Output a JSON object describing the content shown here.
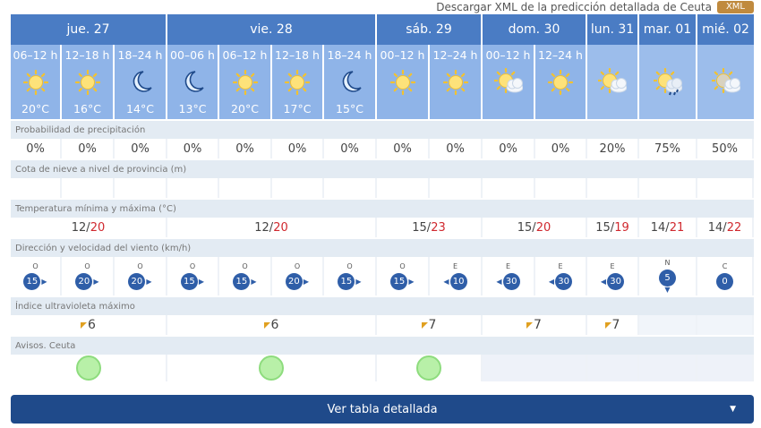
{
  "download": {
    "text": "Descargar XML de la predicción detallada de Ceuta",
    "badge": "XML"
  },
  "days": [
    {
      "label": "jue. 27",
      "temp_min": "12",
      "temp_max": "20",
      "uv": "6",
      "aviso": "green"
    },
    {
      "label": "vie. 28",
      "temp_min": "12",
      "temp_max": "20",
      "uv": "6",
      "aviso": "green"
    },
    {
      "label": "sáb. 29",
      "temp_min": "15",
      "temp_max": "23",
      "uv": "7",
      "aviso": "green"
    },
    {
      "label": "dom. 30",
      "temp_min": "15",
      "temp_max": "20",
      "uv": "7",
      "aviso": ""
    },
    {
      "label": "lun. 31",
      "temp_min": "15",
      "temp_max": "19",
      "uv": "7",
      "aviso": ""
    },
    {
      "label": "mar. 01",
      "temp_min": "14",
      "temp_max": "21",
      "uv": "",
      "aviso": ""
    },
    {
      "label": "mié. 02",
      "temp_min": "14",
      "temp_max": "22",
      "uv": "",
      "aviso": ""
    }
  ],
  "periods": [
    {
      "label": "06–12 h",
      "icon": "sun",
      "temp": "20°C",
      "precip": "0%",
      "wind_dir": "O",
      "wind_speed": "15"
    },
    {
      "label": "12–18 h",
      "icon": "sun",
      "temp": "16°C",
      "precip": "0%",
      "wind_dir": "O",
      "wind_speed": "20"
    },
    {
      "label": "18–24 h",
      "icon": "moon",
      "temp": "14°C",
      "precip": "0%",
      "wind_dir": "O",
      "wind_speed": "20"
    },
    {
      "label": "00–06 h",
      "icon": "moon",
      "temp": "13°C",
      "precip": "0%",
      "wind_dir": "O",
      "wind_speed": "15"
    },
    {
      "label": "06–12 h",
      "icon": "sun",
      "temp": "20°C",
      "precip": "0%",
      "wind_dir": "O",
      "wind_speed": "15"
    },
    {
      "label": "12–18 h",
      "icon": "sun",
      "temp": "17°C",
      "precip": "0%",
      "wind_dir": "O",
      "wind_speed": "20"
    },
    {
      "label": "18–24 h",
      "icon": "moon",
      "temp": "15°C",
      "precip": "0%",
      "wind_dir": "O",
      "wind_speed": "15"
    },
    {
      "label": "00–12 h",
      "icon": "sun",
      "temp": "",
      "precip": "0%",
      "wind_dir": "O",
      "wind_speed": "15"
    },
    {
      "label": "12–24 h",
      "icon": "sun",
      "temp": "",
      "precip": "0%",
      "wind_dir": "E",
      "wind_speed": "10"
    },
    {
      "label": "00–12 h",
      "icon": "sun-cloud",
      "temp": "",
      "precip": "0%",
      "wind_dir": "E",
      "wind_speed": "30"
    },
    {
      "label": "12–24 h",
      "icon": "sun",
      "temp": "",
      "precip": "0%",
      "wind_dir": "E",
      "wind_speed": "30"
    },
    {
      "label": "",
      "icon": "sun-cloud",
      "temp": "",
      "precip": "20%",
      "wind_dir": "E",
      "wind_speed": "30"
    },
    {
      "label": "",
      "icon": "sun-cloud-rain",
      "temp": "",
      "precip": "75%",
      "wind_dir": "N",
      "wind_speed": "5"
    },
    {
      "label": "",
      "icon": "sun-cloud-grey",
      "temp": "",
      "precip": "50%",
      "wind_dir": "C",
      "wind_speed": "0"
    }
  ],
  "labels": {
    "precip": "Probabilidad de precipitación",
    "snow": "Cota de nieve a nivel de provincia (m)",
    "temp": "Temperatura mínima y máxima (°C)",
    "wind": "Dirección y velocidad del viento (km/h)",
    "uv": "Índice ultravioleta máximo",
    "avisos": "Avisos. Ceuta"
  },
  "button": {
    "label": "Ver tabla detallada"
  },
  "colors": {
    "header": "#4a7cc4",
    "period": "#8fb4e8",
    "temp_max": "#d0282e",
    "wind": "#2f5ea8",
    "aviso_green": "#b8f0a8",
    "button": "#1f4a8a"
  }
}
